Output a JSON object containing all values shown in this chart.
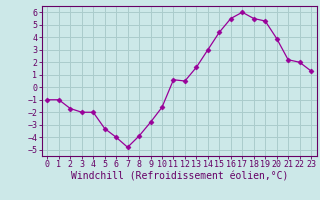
{
  "x": [
    0,
    1,
    2,
    3,
    4,
    5,
    6,
    7,
    8,
    9,
    10,
    11,
    12,
    13,
    14,
    15,
    16,
    17,
    18,
    19,
    20,
    21,
    22,
    23
  ],
  "y": [
    -1,
    -1,
    -1.7,
    -2,
    -2,
    -3.3,
    -4,
    -4.8,
    -3.9,
    -2.8,
    -1.6,
    0.6,
    0.5,
    1.6,
    3.0,
    4.4,
    5.5,
    6.0,
    5.5,
    5.3,
    3.9,
    2.2,
    2.0,
    1.3
  ],
  "line_color": "#990099",
  "marker": "D",
  "marker_size": 2.5,
  "bg_color": "#cce8e8",
  "grid_color": "#aacccc",
  "xlabel": "Windchill (Refroidissement éolien,°C)",
  "ylabel": "",
  "xlim": [
    -0.5,
    23.5
  ],
  "ylim": [
    -5.5,
    6.5
  ],
  "yticks": [
    -5,
    -4,
    -3,
    -2,
    -1,
    0,
    1,
    2,
    3,
    4,
    5,
    6
  ],
  "xticks": [
    0,
    1,
    2,
    3,
    4,
    5,
    6,
    7,
    8,
    9,
    10,
    11,
    12,
    13,
    14,
    15,
    16,
    17,
    18,
    19,
    20,
    21,
    22,
    23
  ],
  "tick_label_color": "#660066",
  "tick_label_fontsize": 6.0,
  "xlabel_fontsize": 7.0,
  "xlabel_color": "#660066",
  "spine_color": "#660066",
  "font_family": "monospace"
}
